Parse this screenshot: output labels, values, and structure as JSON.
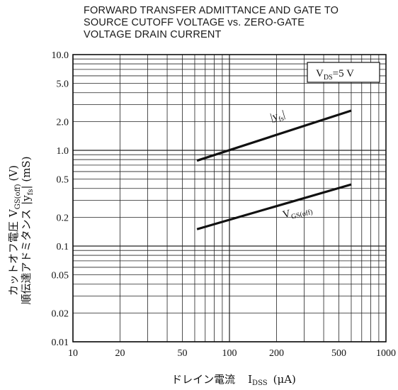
{
  "title": {
    "line1": "FORWARD TRANSFER ADMITTANCE AND GATE TO",
    "line2": "SOURCE CUTOFF VOLTAGE vs. ZERO-GATE",
    "line3": "VOLTAGE DRAIN CURRENT"
  },
  "chart_data": {
    "type": "line",
    "xscale": "log",
    "yscale": "log",
    "xlim": [
      10,
      1000
    ],
    "ylim": [
      0.01,
      10
    ],
    "grid": true,
    "x_ticks": [
      "10",
      "20",
      "50",
      "100",
      "200",
      "500",
      "1000"
    ],
    "y_ticks": [
      "10.0",
      "5.0",
      "2.0",
      "1.0",
      "0.5",
      "0.2",
      "0.1",
      "0.05",
      "0.02",
      "0.01"
    ],
    "xlabel": {
      "jp": "ドレイン電流",
      "sym": "I",
      "sub": "DSS",
      "unit": "(μA)"
    },
    "ylabel": {
      "line1_jp": "カットオフ電圧",
      "line1_sym": "V",
      "line1_sub": "GS(off)",
      "line1_unit": "(V)",
      "line2_jp": "順伝達アドミタンス",
      "line2_sym": "|y",
      "line2_sub": "fs",
      "line2_unit": "| (mS)"
    },
    "condition": {
      "sym": "V",
      "sub": "DS",
      "rest": "=5 V"
    },
    "series": [
      {
        "label_sym": "|y",
        "label_sub": "fs",
        "label_end": "|",
        "x": [
          62,
          600
        ],
        "y": [
          0.78,
          2.6
        ]
      },
      {
        "label_sym": "V",
        "label_sub": "GS(off)",
        "label_end": "",
        "x": [
          62,
          600
        ],
        "y": [
          0.15,
          0.44
        ]
      }
    ]
  }
}
